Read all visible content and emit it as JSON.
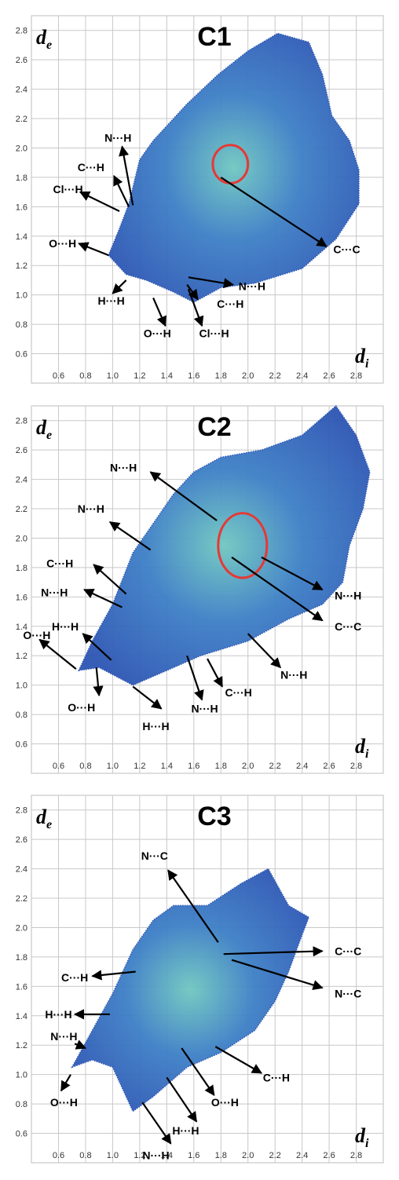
{
  "chart_data": [
    {
      "type": "scatter",
      "title": "C1",
      "xlabel": "d",
      "xlabel_sub": "i",
      "ylabel": "d",
      "ylabel_sub": "e",
      "xlim": [
        0.4,
        3.0
      ],
      "ylim": [
        0.4,
        2.9
      ],
      "xticks": [
        "0.6",
        "0.8",
        "1.0",
        "1.2",
        "1.4",
        "1.6",
        "1.8",
        "2.0",
        "2.2",
        "2.4",
        "2.6",
        "2.8"
      ],
      "yticks": [
        "0.6",
        "0.8",
        "1.0",
        "1.2",
        "1.4",
        "1.6",
        "1.8",
        "2.0",
        "2.2",
        "2.4",
        "2.6",
        "2.8"
      ],
      "grid": true,
      "cloud": [
        [
          0.97,
          1.27
        ],
        [
          1.1,
          1.14
        ],
        [
          1.25,
          1.1
        ],
        [
          1.45,
          1.02
        ],
        [
          1.6,
          0.95
        ],
        [
          1.8,
          1.05
        ],
        [
          2.05,
          1.08
        ],
        [
          2.4,
          1.18
        ],
        [
          2.65,
          1.38
        ],
        [
          2.82,
          1.62
        ],
        [
          2.82,
          1.85
        ],
        [
          2.75,
          2.05
        ],
        [
          2.62,
          2.22
        ],
        [
          2.55,
          2.5
        ],
        [
          2.45,
          2.72
        ],
        [
          2.22,
          2.78
        ],
        [
          2.0,
          2.66
        ],
        [
          1.78,
          2.5
        ],
        [
          1.55,
          2.3
        ],
        [
          1.3,
          2.05
        ],
        [
          1.2,
          1.92
        ],
        [
          1.12,
          1.62
        ],
        [
          1.05,
          1.45
        ]
      ],
      "circle": {
        "x": 1.87,
        "y": 1.89,
        "rx": 0.13,
        "ry": 0.13
      },
      "annotations": [
        {
          "label": "N···H",
          "text_x": 1.04,
          "text_y": 2.07,
          "tip_x": 1.07,
          "tip_y": 2.01,
          "tail_x": 1.15,
          "tail_y": 1.61
        },
        {
          "label": "C···H",
          "text_x": 0.84,
          "text_y": 1.87,
          "tip_x": 1.01,
          "tip_y": 1.81,
          "tail_x": 1.12,
          "tail_y": 1.6
        },
        {
          "label": "Cl···H",
          "text_x": 0.67,
          "text_y": 1.72,
          "tip_x": 0.76,
          "tip_y": 1.7,
          "tail_x": 1.05,
          "tail_y": 1.57
        },
        {
          "label": "O···H",
          "text_x": 0.63,
          "text_y": 1.35,
          "tip_x": 0.75,
          "tip_y": 1.35,
          "tail_x": 0.97,
          "tail_y": 1.27
        },
        {
          "label": "H···H",
          "text_x": 0.99,
          "text_y": 0.96,
          "tip_x": 1.0,
          "tip_y": 1.01,
          "tail_x": 1.1,
          "tail_y": 1.1
        },
        {
          "label": "O···H",
          "text_x": 1.33,
          "text_y": 0.74,
          "tip_x": 1.39,
          "tip_y": 0.79,
          "tail_x": 1.3,
          "tail_y": 0.98
        },
        {
          "label": "Cl···H",
          "text_x": 1.75,
          "text_y": 0.74,
          "tip_x": 1.66,
          "tip_y": 0.79,
          "tail_x": 1.56,
          "tail_y": 1.04
        },
        {
          "label": "C···H",
          "text_x": 1.87,
          "text_y": 0.94,
          "tip_x": 1.63,
          "tip_y": 0.97,
          "tail_x": 1.55,
          "tail_y": 1.07
        },
        {
          "label": "N···H",
          "text_x": 2.03,
          "text_y": 1.06,
          "tip_x": 1.89,
          "tip_y": 1.07,
          "tail_x": 1.56,
          "tail_y": 1.12
        },
        {
          "label": "C···C",
          "text_x": 2.73,
          "text_y": 1.31,
          "tip_x": 2.58,
          "tip_y": 1.33,
          "tail_x": 1.8,
          "tail_y": 1.8
        }
      ]
    },
    {
      "type": "scatter",
      "title": "C2",
      "xlabel": "d",
      "xlabel_sub": "i",
      "ylabel": "d",
      "ylabel_sub": "e",
      "xlim": [
        0.4,
        3.0
      ],
      "ylim": [
        0.4,
        2.9
      ],
      "xticks": [
        "0.6",
        "0.8",
        "1.0",
        "1.2",
        "1.4",
        "1.6",
        "1.8",
        "2.0",
        "2.2",
        "2.4",
        "2.6",
        "2.8"
      ],
      "yticks": [
        "0.6",
        "0.8",
        "1.0",
        "1.2",
        "1.4",
        "1.6",
        "1.8",
        "2.0",
        "2.2",
        "2.4",
        "2.6",
        "2.8"
      ],
      "grid": true,
      "cloud": [
        [
          0.75,
          1.1
        ],
        [
          0.9,
          1.12
        ],
        [
          1.15,
          1.0
        ],
        [
          1.4,
          1.1
        ],
        [
          1.65,
          1.2
        ],
        [
          2.0,
          1.3
        ],
        [
          2.3,
          1.45
        ],
        [
          2.55,
          1.55
        ],
        [
          2.7,
          1.7
        ],
        [
          2.75,
          1.95
        ],
        [
          2.85,
          2.2
        ],
        [
          2.9,
          2.45
        ],
        [
          2.8,
          2.7
        ],
        [
          2.65,
          2.9
        ],
        [
          2.4,
          2.7
        ],
        [
          2.1,
          2.6
        ],
        [
          1.8,
          2.55
        ],
        [
          1.6,
          2.45
        ],
        [
          1.45,
          2.3
        ],
        [
          1.3,
          2.1
        ],
        [
          1.15,
          1.9
        ],
        [
          1.0,
          1.55
        ],
        [
          0.85,
          1.3
        ]
      ],
      "circle": {
        "x": 1.96,
        "y": 1.95,
        "rx": 0.18,
        "ry": 0.22
      },
      "annotations": [
        {
          "label": "N···H",
          "text_x": 1.08,
          "text_y": 2.48,
          "tip_x": 1.28,
          "tip_y": 2.45,
          "tail_x": 1.77,
          "tail_y": 2.12
        },
        {
          "label": "N···H",
          "text_x": 0.84,
          "text_y": 2.2,
          "tip_x": 0.98,
          "tip_y": 2.11,
          "tail_x": 1.28,
          "tail_y": 1.92
        },
        {
          "label": "C···H",
          "text_x": 0.61,
          "text_y": 1.83,
          "tip_x": 0.86,
          "tip_y": 1.82,
          "tail_x": 1.1,
          "tail_y": 1.62
        },
        {
          "label": "N···H",
          "text_x": 0.57,
          "text_y": 1.63,
          "tip_x": 0.79,
          "tip_y": 1.65,
          "tail_x": 1.07,
          "tail_y": 1.53
        },
        {
          "label": "H···H",
          "text_x": 0.65,
          "text_y": 1.4,
          "tip_x": 0.78,
          "tip_y": 1.35,
          "tail_x": 0.99,
          "tail_y": 1.17
        },
        {
          "label": "O···H",
          "text_x": 0.44,
          "text_y": 1.34,
          "tip_x": 0.46,
          "tip_y": 1.31,
          "tail_x": 0.73,
          "tail_y": 1.11
        },
        {
          "label": "O···H",
          "text_x": 0.77,
          "text_y": 0.85,
          "tip_x": 0.9,
          "tip_y": 0.93,
          "tail_x": 0.88,
          "tail_y": 1.12
        },
        {
          "label": "H···H",
          "text_x": 1.32,
          "text_y": 0.72,
          "tip_x": 1.36,
          "tip_y": 0.84,
          "tail_x": 1.15,
          "tail_y": 0.99
        },
        {
          "label": "N···H",
          "text_x": 1.68,
          "text_y": 0.84,
          "tip_x": 1.66,
          "tip_y": 0.9,
          "tail_x": 1.55,
          "tail_y": 1.2
        },
        {
          "label": "C···H",
          "text_x": 1.93,
          "text_y": 0.95,
          "tip_x": 1.81,
          "tip_y": 0.99,
          "tail_x": 1.7,
          "tail_y": 1.18
        },
        {
          "label": "N···H",
          "text_x": 2.34,
          "text_y": 1.07,
          "tip_x": 2.24,
          "tip_y": 1.12,
          "tail_x": 2.0,
          "tail_y": 1.35
        },
        {
          "label": "C···C",
          "text_x": 2.74,
          "text_y": 1.4,
          "tip_x": 2.55,
          "tip_y": 1.44,
          "tail_x": 1.88,
          "tail_y": 1.87
        },
        {
          "label": "N···H",
          "text_x": 2.74,
          "text_y": 1.61,
          "tip_x": 2.55,
          "tip_y": 1.65,
          "tail_x": 2.1,
          "tail_y": 1.87
        }
      ]
    },
    {
      "type": "scatter",
      "title": "C3",
      "xlabel": "d",
      "xlabel_sub": "i",
      "ylabel": "d",
      "ylabel_sub": "e",
      "xlim": [
        0.4,
        3.0
      ],
      "ylim": [
        0.4,
        2.9
      ],
      "xticks": [
        "0.6",
        "0.8",
        "1.0",
        "1.2",
        "1.4",
        "1.6",
        "1.8",
        "2.0",
        "2.2",
        "2.4",
        "2.6",
        "2.8"
      ],
      "yticks": [
        "0.6",
        "0.8",
        "1.0",
        "1.2",
        "1.4",
        "1.6",
        "1.8",
        "2.0",
        "2.2",
        "2.4",
        "2.6",
        "2.8"
      ],
      "grid": true,
      "cloud": [
        [
          0.7,
          1.05
        ],
        [
          0.85,
          1.1
        ],
        [
          1.0,
          1.05
        ],
        [
          1.15,
          0.75
        ],
        [
          1.3,
          0.85
        ],
        [
          1.55,
          1.05
        ],
        [
          1.8,
          1.15
        ],
        [
          2.05,
          1.3
        ],
        [
          2.2,
          1.5
        ],
        [
          2.3,
          1.7
        ],
        [
          2.4,
          1.95
        ],
        [
          2.45,
          2.07
        ],
        [
          2.3,
          2.15
        ],
        [
          2.15,
          2.4
        ],
        [
          1.95,
          2.3
        ],
        [
          1.7,
          2.15
        ],
        [
          1.45,
          2.15
        ],
        [
          1.3,
          2.05
        ],
        [
          1.15,
          1.85
        ],
        [
          1.0,
          1.55
        ],
        [
          0.85,
          1.3
        ]
      ],
      "circle": null,
      "annotations": [
        {
          "label": "N···C",
          "text_x": 1.31,
          "text_y": 2.49,
          "tip_x": 1.41,
          "tip_y": 2.39,
          "tail_x": 1.78,
          "tail_y": 1.9
        },
        {
          "label": "C···C",
          "text_x": 2.74,
          "text_y": 1.84,
          "tip_x": 2.55,
          "tip_y": 1.84,
          "tail_x": 1.82,
          "tail_y": 1.82
        },
        {
          "label": "N···C",
          "text_x": 2.74,
          "text_y": 1.55,
          "tip_x": 2.55,
          "tip_y": 1.59,
          "tail_x": 1.88,
          "tail_y": 1.78
        },
        {
          "label": "C···H",
          "text_x": 0.72,
          "text_y": 1.66,
          "tip_x": 0.85,
          "tip_y": 1.67,
          "tail_x": 1.17,
          "tail_y": 1.7
        },
        {
          "label": "H···H",
          "text_x": 0.6,
          "text_y": 1.41,
          "tip_x": 0.72,
          "tip_y": 1.41,
          "tail_x": 0.98,
          "tail_y": 1.41
        },
        {
          "label": "N···H",
          "text_x": 0.64,
          "text_y": 1.26,
          "tip_x": 0.8,
          "tip_y": 1.18,
          "tail_x": 0.72,
          "tail_y": 1.21
        },
        {
          "label": "O···H",
          "text_x": 0.64,
          "text_y": 0.81,
          "tip_x": 0.62,
          "tip_y": 0.89,
          "tail_x": 0.69,
          "tail_y": 1.0
        },
        {
          "label": "C···H",
          "text_x": 2.21,
          "text_y": 0.98,
          "tip_x": 2.1,
          "tip_y": 1.01,
          "tail_x": 1.76,
          "tail_y": 1.19
        },
        {
          "label": "O···H",
          "text_x": 1.83,
          "text_y": 0.81,
          "tip_x": 1.75,
          "tip_y": 0.86,
          "tail_x": 1.51,
          "tail_y": 1.18
        },
        {
          "label": "H···H",
          "text_x": 1.54,
          "text_y": 0.62,
          "tip_x": 1.62,
          "tip_y": 0.68,
          "tail_x": 1.4,
          "tail_y": 0.98
        },
        {
          "label": "N···H",
          "text_x": 1.32,
          "text_y": 0.45,
          "tip_x": 1.43,
          "tip_y": 0.53,
          "tail_x": 1.22,
          "tail_y": 0.81
        }
      ]
    }
  ]
}
